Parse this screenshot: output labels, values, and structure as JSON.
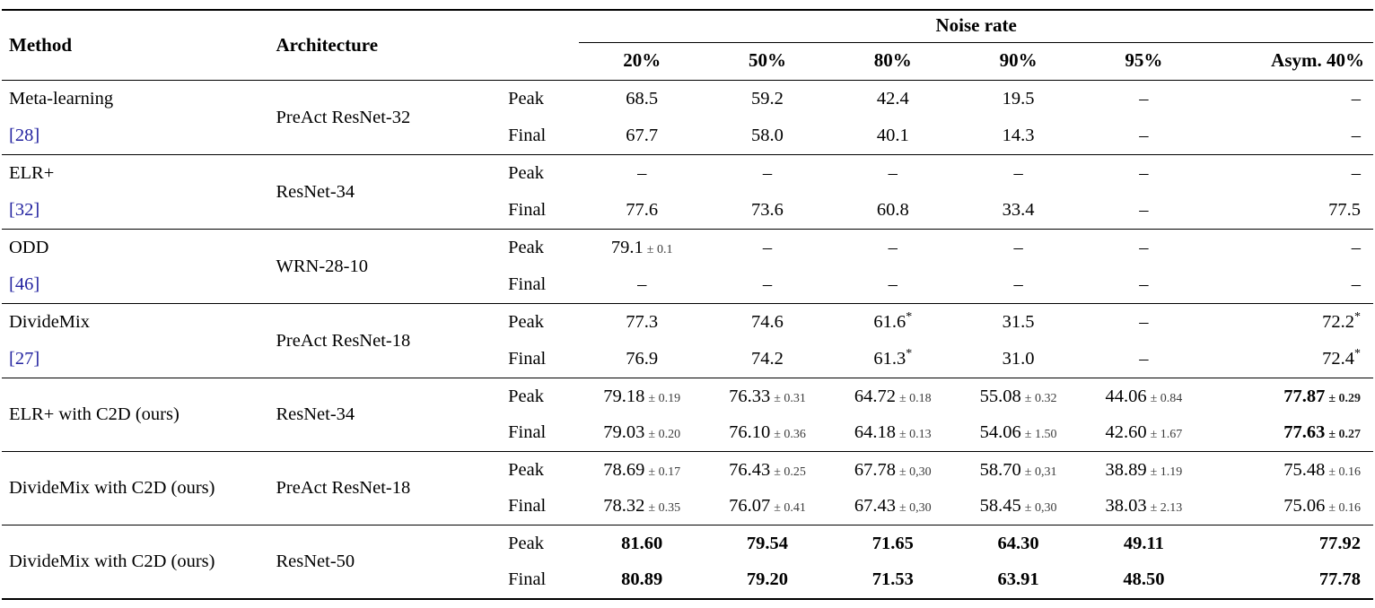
{
  "page": {
    "background": "#ffffff"
  },
  "colors": {
    "text": "#000000",
    "citation_link": "#2323a0",
    "pm_text": "#3c3c3c",
    "rule": "#000000"
  },
  "table": {
    "header": {
      "method": "Method",
      "architecture": "Architecture",
      "noise_rate": "Noise rate",
      "noise_columns": [
        "20%",
        "50%",
        "80%",
        "90%",
        "95%",
        "Asym. 40%"
      ]
    },
    "row_labels": [
      "Peak",
      "Final"
    ],
    "dash": "–",
    "groups": [
      {
        "method": "Meta-learning",
        "citation": "[28]",
        "architecture": "PreAct ResNet-32",
        "peak": [
          {
            "v": "68.5"
          },
          {
            "v": "59.2"
          },
          {
            "v": "42.4"
          },
          {
            "v": "19.5"
          },
          {
            "v": "–"
          },
          {
            "v": "–"
          }
        ],
        "final": [
          {
            "v": "67.7"
          },
          {
            "v": "58.0"
          },
          {
            "v": "40.1"
          },
          {
            "v": "14.3"
          },
          {
            "v": "–"
          },
          {
            "v": "–"
          }
        ]
      },
      {
        "method": "ELR+",
        "citation": "[32]",
        "architecture": "ResNet-34",
        "peak": [
          {
            "v": "–"
          },
          {
            "v": "–"
          },
          {
            "v": "–"
          },
          {
            "v": "–"
          },
          {
            "v": "–"
          },
          {
            "v": "–"
          }
        ],
        "final": [
          {
            "v": "77.6"
          },
          {
            "v": "73.6"
          },
          {
            "v": "60.8"
          },
          {
            "v": "33.4"
          },
          {
            "v": "–"
          },
          {
            "v": "77.5"
          }
        ]
      },
      {
        "method": "ODD",
        "citation": "[46]",
        "architecture": "WRN-28-10",
        "peak": [
          {
            "v": "79.1",
            "pm": "0.1"
          },
          {
            "v": "–"
          },
          {
            "v": "–"
          },
          {
            "v": "–"
          },
          {
            "v": "–"
          },
          {
            "v": "–"
          }
        ],
        "final": [
          {
            "v": "–"
          },
          {
            "v": "–"
          },
          {
            "v": "–"
          },
          {
            "v": "–"
          },
          {
            "v": "–"
          },
          {
            "v": "–"
          }
        ]
      },
      {
        "method": "DivideMix",
        "citation": "[27]",
        "architecture": "PreAct ResNet-18",
        "peak": [
          {
            "v": "77.3"
          },
          {
            "v": "74.6"
          },
          {
            "v": "61.6",
            "star": true
          },
          {
            "v": "31.5"
          },
          {
            "v": "–"
          },
          {
            "v": "72.2",
            "star": true
          }
        ],
        "final": [
          {
            "v": "76.9"
          },
          {
            "v": "74.2"
          },
          {
            "v": "61.3",
            "star": true
          },
          {
            "v": "31.0"
          },
          {
            "v": "–"
          },
          {
            "v": "72.4",
            "star": true
          }
        ]
      },
      {
        "method": "ELR+ with C2D (ours)",
        "citation": null,
        "architecture": "ResNet-34",
        "peak": [
          {
            "v": "79.18",
            "pm": "0.19"
          },
          {
            "v": "76.33",
            "pm": "0.31"
          },
          {
            "v": "64.72",
            "pm": "0.18"
          },
          {
            "v": "55.08",
            "pm": "0.32"
          },
          {
            "v": "44.06",
            "pm": "0.84"
          },
          {
            "v": "77.87",
            "pm": "0.29",
            "bold": true
          }
        ],
        "final": [
          {
            "v": "79.03",
            "pm": "0.20"
          },
          {
            "v": "76.10",
            "pm": "0.36"
          },
          {
            "v": "64.18",
            "pm": "0.13"
          },
          {
            "v": "54.06",
            "pm": "1.50"
          },
          {
            "v": "42.60",
            "pm": "1.67"
          },
          {
            "v": "77.63",
            "pm": "0.27",
            "bold": true
          }
        ]
      },
      {
        "method": "DivideMix with C2D (ours)",
        "citation": null,
        "architecture": "PreAct ResNet-18",
        "peak": [
          {
            "v": "78.69",
            "pm": "0.17"
          },
          {
            "v": "76.43",
            "pm": "0.25"
          },
          {
            "v": "67.78",
            "pm": "0,30"
          },
          {
            "v": "58.70",
            "pm": "0,31"
          },
          {
            "v": "38.89",
            "pm": "1.19"
          },
          {
            "v": "75.48",
            "pm": "0.16"
          }
        ],
        "final": [
          {
            "v": "78.32",
            "pm": "0.35"
          },
          {
            "v": "76.07",
            "pm": "0.41"
          },
          {
            "v": "67.43",
            "pm": "0,30"
          },
          {
            "v": "58.45",
            "pm": "0,30"
          },
          {
            "v": "38.03",
            "pm": "2.13"
          },
          {
            "v": "75.06",
            "pm": "0.16"
          }
        ]
      },
      {
        "method": "DivideMix with C2D (ours)",
        "citation": null,
        "architecture": "ResNet-50",
        "peak": [
          {
            "v": "81.60",
            "bold": true
          },
          {
            "v": "79.54",
            "bold": true
          },
          {
            "v": "71.65",
            "bold": true
          },
          {
            "v": "64.30",
            "bold": true
          },
          {
            "v": "49.11",
            "bold": true
          },
          {
            "v": "77.92",
            "bold": true
          }
        ],
        "final": [
          {
            "v": "80.89",
            "bold": true
          },
          {
            "v": "79.20",
            "bold": true
          },
          {
            "v": "71.53",
            "bold": true
          },
          {
            "v": "63.91",
            "bold": true
          },
          {
            "v": "48.50",
            "bold": true
          },
          {
            "v": "77.78",
            "bold": true
          }
        ]
      }
    ]
  }
}
